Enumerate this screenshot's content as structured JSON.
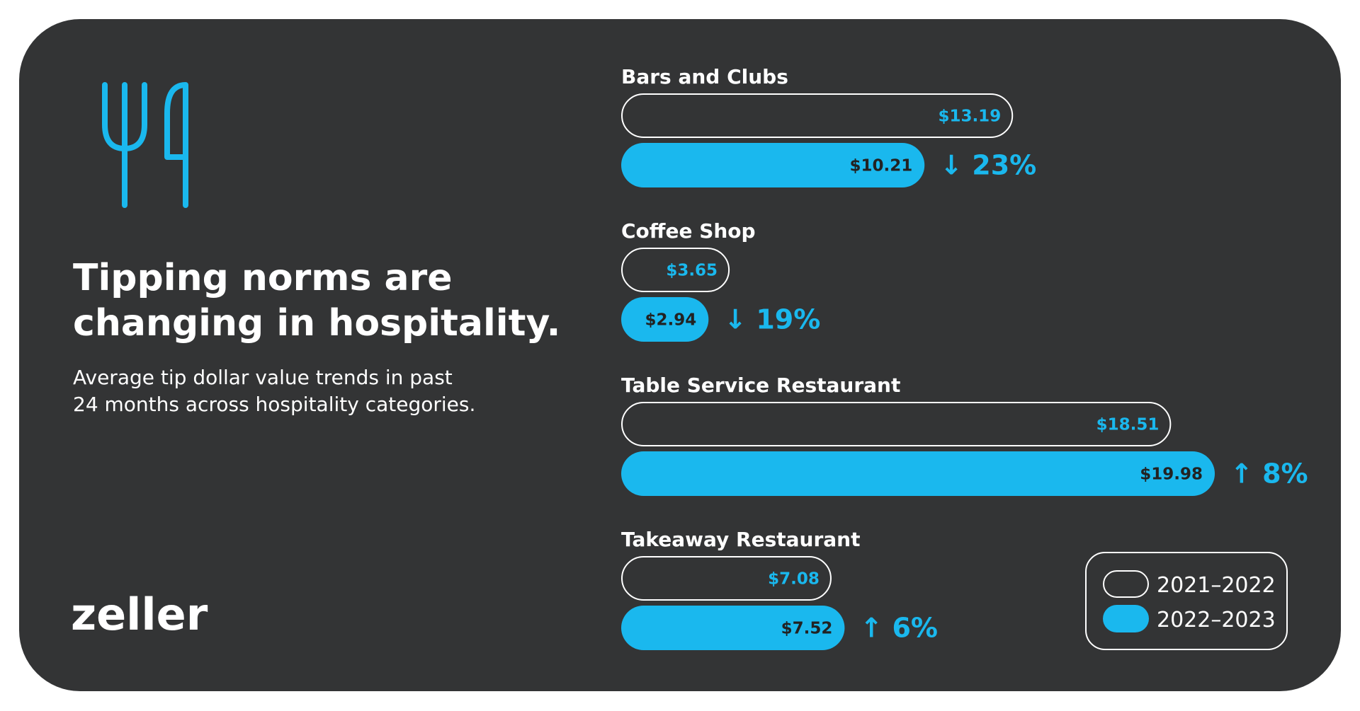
{
  "chart_data": {
    "type": "bar",
    "title": "Tipping norms are changing in hospitality.",
    "subtitle": "Average tip dollar value trends in past 24 months across hospitality categories.",
    "categories": [
      "Bars and Clubs",
      "Coffee Shop",
      "Table Service Restaurant",
      "Takeaway Restaurant"
    ],
    "series": [
      {
        "name": "2021–2022",
        "color": "#ffffff",
        "values": [
          13.19,
          3.65,
          18.51,
          7.08
        ],
        "value_labels": [
          "$13.19",
          "$3.65",
          "$18.51",
          "$7.08"
        ]
      },
      {
        "name": "2022–2023",
        "color": "#1ab8ee",
        "values": [
          10.21,
          2.94,
          19.98,
          7.52
        ],
        "value_labels": [
          "$10.21",
          "$2.94",
          "$19.98",
          "$7.52"
        ]
      }
    ],
    "annotations": [
      "↓ 23%",
      "↓ 19%",
      "↑ 8%",
      "↑ 6%"
    ]
  },
  "brand": "zeller"
}
